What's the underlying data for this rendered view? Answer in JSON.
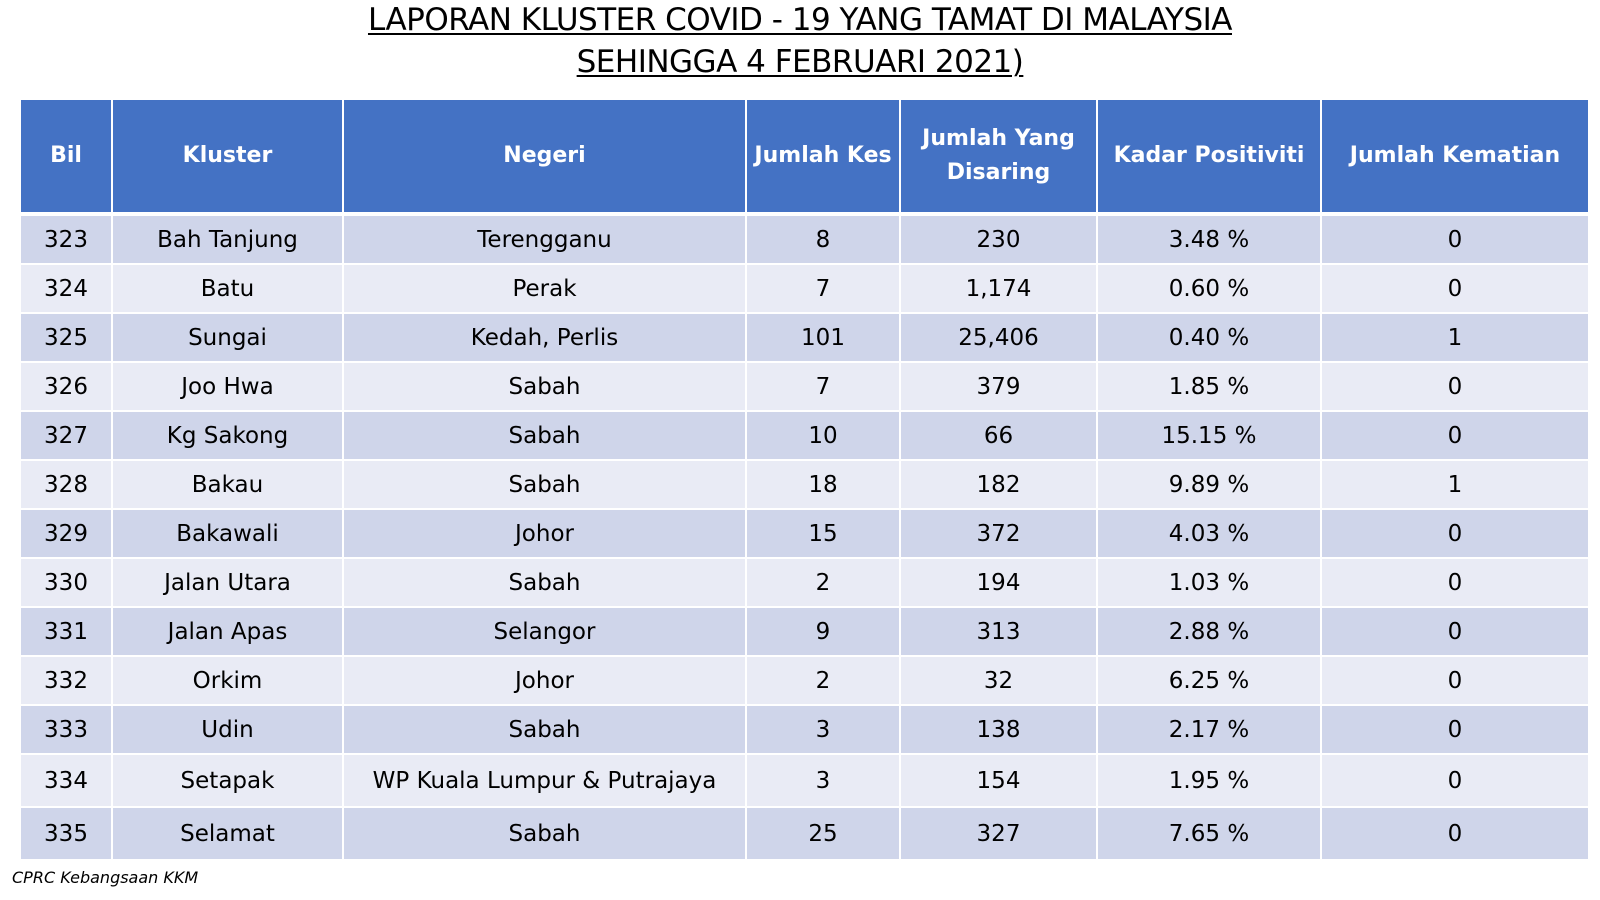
{
  "title": {
    "line1": "LAPORAN KLUSTER COVID - 19 YANG TAMAT DI MALAYSIA",
    "line2": "SEHINGGA 4 FEBRUARI 2021)"
  },
  "table": {
    "headers": {
      "bil": "Bil",
      "kluster": "Kluster",
      "negeri": "Negeri",
      "jumlah_kes": "Jumlah Kes",
      "jumlah_disaring": "Jumlah Yang Disaring",
      "kadar_positiviti": "Kadar Positiviti",
      "jumlah_kematian": "Jumlah Kematian"
    },
    "rows": [
      {
        "bil": "323",
        "kluster": "Bah Tanjung",
        "negeri": "Terengganu",
        "kes": "8",
        "disaring": "230",
        "positiviti": "3.48 %",
        "kematian": "0"
      },
      {
        "bil": "324",
        "kluster": "Batu",
        "negeri": "Perak",
        "kes": "7",
        "disaring": "1,174",
        "positiviti": "0.60 %",
        "kematian": "0"
      },
      {
        "bil": "325",
        "kluster": "Sungai",
        "negeri": "Kedah, Perlis",
        "kes": "101",
        "disaring": "25,406",
        "positiviti": "0.40 %",
        "kematian": "1"
      },
      {
        "bil": "326",
        "kluster": "Joo Hwa",
        "negeri": "Sabah",
        "kes": "7",
        "disaring": "379",
        "positiviti": "1.85 %",
        "kematian": "0"
      },
      {
        "bil": "327",
        "kluster": "Kg Sakong",
        "negeri": "Sabah",
        "kes": "10",
        "disaring": "66",
        "positiviti": "15.15 %",
        "kematian": "0"
      },
      {
        "bil": "328",
        "kluster": "Bakau",
        "negeri": "Sabah",
        "kes": "18",
        "disaring": "182",
        "positiviti": "9.89 %",
        "kematian": "1"
      },
      {
        "bil": "329",
        "kluster": "Bakawali",
        "negeri": "Johor",
        "kes": "15",
        "disaring": "372",
        "positiviti": "4.03 %",
        "kematian": "0"
      },
      {
        "bil": "330",
        "kluster": "Jalan Utara",
        "negeri": "Sabah",
        "kes": "2",
        "disaring": "194",
        "positiviti": "1.03 %",
        "kematian": "0"
      },
      {
        "bil": "331",
        "kluster": "Jalan Apas",
        "negeri": "Selangor",
        "kes": "9",
        "disaring": "313",
        "positiviti": "2.88 %",
        "kematian": "0"
      },
      {
        "bil": "332",
        "kluster": "Orkim",
        "negeri": "Johor",
        "kes": "2",
        "disaring": "32",
        "positiviti": "6.25 %",
        "kematian": "0"
      },
      {
        "bil": "333",
        "kluster": "Udin",
        "negeri": "Sabah",
        "kes": "3",
        "disaring": "138",
        "positiviti": "2.17 %",
        "kematian": "0"
      },
      {
        "bil": "334",
        "kluster": "Setapak",
        "negeri": "WP Kuala Lumpur & Putrajaya",
        "kes": "3",
        "disaring": "154",
        "positiviti": "1.95 %",
        "kematian": "0"
      },
      {
        "bil": "335",
        "kluster": "Selamat",
        "negeri": "Sabah",
        "kes": "25",
        "disaring": "327",
        "positiviti": "7.65 %",
        "kematian": "0"
      }
    ]
  },
  "source": "CPRC Kebangsaan KKM",
  "colors": {
    "header_bg": "#4472c4",
    "row_odd": "#cfd5ea",
    "row_even": "#e9ebf5"
  }
}
